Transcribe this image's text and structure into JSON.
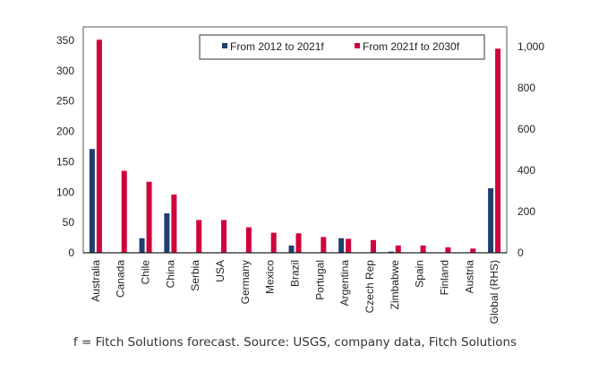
{
  "chart_data": {
    "type": "bar",
    "title": "",
    "xlabel": "",
    "ylabel": "",
    "categories": [
      "Australia",
      "Canada",
      "Chile",
      "China",
      "Serbia",
      "USA",
      "Germany",
      "Mexico",
      "Brazil",
      "Portugal",
      "Argentina",
      "Czech Rep",
      "Zimbabwe",
      "Spain",
      "Finland",
      "Austria",
      "Global (RHS)"
    ],
    "series": [
      {
        "name": "From 2012 to 2021f",
        "color": "#1f3f6e",
        "axis": "left",
        "values": [
          171,
          0,
          24,
          65,
          0,
          0,
          0,
          0,
          12,
          0,
          24,
          0,
          2,
          0,
          0,
          0,
          null
        ]
      },
      {
        "name": "From 2021f to 2030f",
        "color": "#d0023c",
        "axis": "left",
        "values": [
          351,
          135,
          117,
          96,
          54,
          54,
          42,
          33,
          32,
          26,
          23,
          21,
          12,
          12,
          9,
          7,
          null
        ]
      }
    ],
    "rhs_series": [
      {
        "name": "From 2012 to 2021f",
        "category": "Global (RHS)",
        "value": 313
      },
      {
        "name": "From 2021f to 2030f",
        "category": "Global (RHS)",
        "value": 990
      }
    ],
    "ylim": [
      0,
      350
    ],
    "yticks": [
      0,
      50,
      100,
      150,
      200,
      250,
      300,
      350
    ],
    "y2lim": [
      0,
      1000
    ],
    "y2ticks": [
      0,
      200,
      400,
      600,
      800,
      1000
    ],
    "y2tick_labels": [
      "0",
      "200",
      "400",
      "600",
      "800",
      "1,000"
    ],
    "legend": {
      "position": "top-right",
      "entries": [
        "From 2012 to 2021f",
        "From 2021f to 2030f"
      ]
    },
    "grid": false
  },
  "source_note": "f = Fitch Solutions forecast. Source: USGS, company data, Fitch Solutions"
}
